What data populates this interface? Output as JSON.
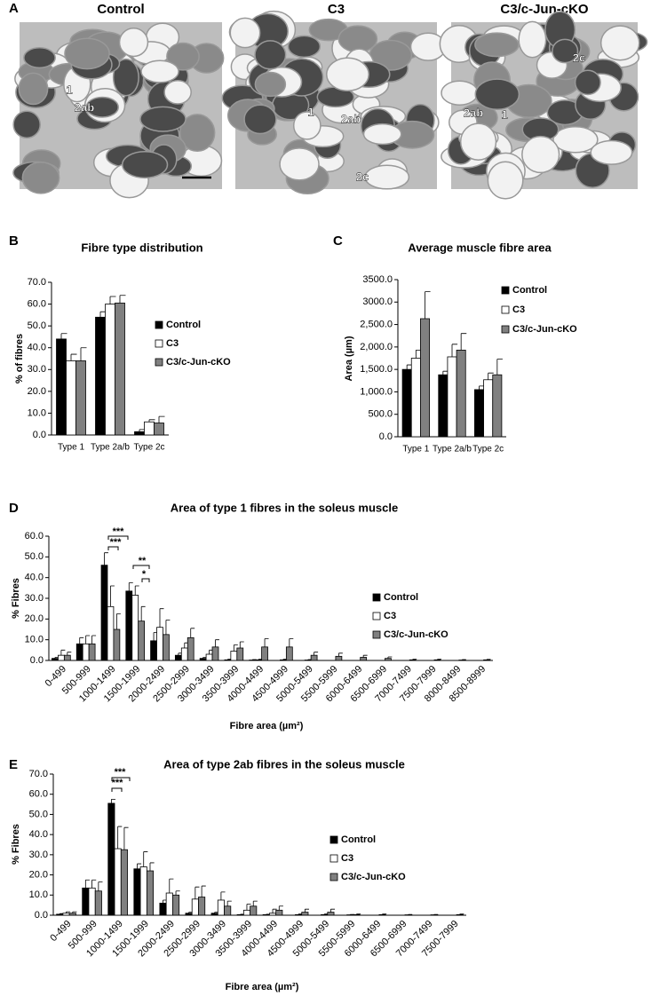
{
  "panel_a": {
    "letter": "A",
    "images": [
      {
        "title": "Control",
        "labels": [
          "1",
          "2ab"
        ]
      },
      {
        "title": "C3",
        "labels": [
          "1",
          "2ab",
          "2c"
        ]
      },
      {
        "title": "C3/c-Jun-cKO",
        "labels": [
          "2c",
          "2ab",
          "1"
        ]
      }
    ]
  },
  "chart_data": [
    {
      "type": "bar",
      "panel": "B",
      "title": "Fibre type distribution",
      "ylabel": "% of fibres",
      "categories": [
        "Type 1",
        "Type 2a/b",
        "Type 2c"
      ],
      "series": [
        {
          "name": "Control",
          "color": "#000000",
          "values": [
            44,
            54,
            1.5
          ],
          "errors": [
            2.5,
            2.5,
            1
          ]
        },
        {
          "name": "C3",
          "color": "#ffffff",
          "values": [
            34,
            60,
            6
          ],
          "errors": [
            3,
            3.5,
            1
          ]
        },
        {
          "name": "C3/c-Jun-cKO",
          "color": "#808080",
          "values": [
            34,
            60.5,
            5.5
          ],
          "errors": [
            6,
            3.5,
            3
          ]
        }
      ],
      "ylim": [
        0,
        70
      ],
      "yticks": [
        {
          "value": 0,
          "label": "0.0"
        },
        {
          "value": 10,
          "label": "10.0"
        },
        {
          "value": 20,
          "label": "20.0"
        },
        {
          "value": 30,
          "label": "30.0"
        },
        {
          "value": 40,
          "label": "40.0"
        },
        {
          "value": 50,
          "label": "50.0"
        },
        {
          "value": 60,
          "label": "60.0"
        },
        {
          "value": 70,
          "label": "70.0"
        }
      ],
      "legend": "right"
    },
    {
      "type": "bar",
      "panel": "C",
      "title": "Average muscle fibre area",
      "ylabel": "Area (µm)",
      "categories": [
        "Type 1",
        "Type 2a/b",
        "Type 2c"
      ],
      "series": [
        {
          "name": "Control",
          "color": "#000000",
          "values": [
            1500,
            1380,
            1050
          ],
          "errors": [
            100,
            80,
            80
          ]
        },
        {
          "name": "C3",
          "color": "#ffffff",
          "values": [
            1750,
            1780,
            1270
          ],
          "errors": [
            180,
            280,
            150
          ]
        },
        {
          "name": "C3/c-Jun-cKO",
          "color": "#808080",
          "values": [
            2630,
            1930,
            1380
          ],
          "errors": [
            600,
            370,
            350
          ]
        }
      ],
      "ylim": [
        0,
        3500
      ],
      "yticks": [
        {
          "value": 0,
          "label": "0.0"
        },
        {
          "value": 500,
          "label": "500.0"
        },
        {
          "value": 1000,
          "label": "1,000.0"
        },
        {
          "value": 1500,
          "label": "1,500.0"
        },
        {
          "value": 2000,
          "label": "2,000.0"
        },
        {
          "value": 2500,
          "label": "2,500.0"
        },
        {
          "value": 3000,
          "label": "3000.0"
        },
        {
          "value": 3500,
          "label": "3500.0"
        }
      ],
      "legend": "right"
    },
    {
      "type": "bar",
      "panel": "D",
      "title": "Area of type 1 fibres in the soleus muscle",
      "ylabel": "% Fibres",
      "xlabel": "Fibre area (µm²)",
      "categories": [
        "0-499",
        "500-999",
        "1000-1499",
        "1500-1999",
        "2000-2499",
        "2500-2999",
        "3000-3499",
        "3500-3999",
        "4000-4499",
        "4500-4999",
        "5000-5499",
        "5500-5999",
        "6000-6499",
        "6500-6999",
        "7000-7499",
        "7500-7999",
        "8000-8499",
        "8500-8999"
      ],
      "series": [
        {
          "name": "Control",
          "color": "#000000",
          "values": [
            1,
            8,
            46,
            33.5,
            9.5,
            2.5,
            1,
            0.3,
            0.2,
            0,
            0,
            0,
            0,
            0,
            0,
            0,
            0,
            0
          ],
          "errors": [
            0.5,
            3,
            6,
            4,
            4,
            1,
            0.5,
            0.3,
            0.2,
            0,
            0,
            0,
            0,
            0,
            0,
            0,
            0,
            0
          ]
        },
        {
          "name": "C3",
          "color": "#ffffff",
          "values": [
            2.5,
            8,
            26,
            31.5,
            16,
            6,
            3,
            4.5,
            0.3,
            0.3,
            0.2,
            0,
            0,
            0,
            0,
            0,
            0,
            0
          ],
          "errors": [
            2.5,
            4,
            10,
            4.5,
            9,
            2.5,
            2,
            3,
            0.3,
            0.3,
            0.2,
            0,
            0,
            0,
            0,
            0,
            0,
            0
          ]
        },
        {
          "name": "C3/c-Jun-cKO",
          "color": "#808080",
          "values": [
            2.5,
            8,
            15,
            19,
            12.5,
            11,
            6.5,
            6,
            6.5,
            6.5,
            2.5,
            2,
            1.5,
            1,
            0.3,
            0.3,
            0.2,
            0.3
          ],
          "errors": [
            1.5,
            4,
            7.5,
            7,
            7,
            4.5,
            3.5,
            3,
            4,
            4,
            1.5,
            1.5,
            1,
            0.7,
            0.3,
            0.3,
            0.2,
            0.2
          ]
        }
      ],
      "ylim": [
        0,
        60
      ],
      "yticks": [
        {
          "value": 0,
          "label": "0.0"
        },
        {
          "value": 10,
          "label": "10.0"
        },
        {
          "value": 20,
          "label": "20.0"
        },
        {
          "value": 30,
          "label": "30.0"
        },
        {
          "value": 40,
          "label": "40.0"
        },
        {
          "value": 50,
          "label": "50.0"
        },
        {
          "value": 60,
          "label": "60.0"
        }
      ],
      "annotations": [
        "***",
        "***",
        "**",
        "*"
      ],
      "legend": "right"
    },
    {
      "type": "bar",
      "panel": "E",
      "title": "Area of type 2ab fibres in the soleus muscle",
      "ylabel": "% Fibres",
      "xlabel": "Fibre area (µm²)",
      "categories": [
        "0-499",
        "500-999",
        "1000-1499",
        "1500-1999",
        "2000-2499",
        "2500-2999",
        "3000-3499",
        "3500-3999",
        "4000-4499",
        "4500-4999",
        "5000-5499",
        "5500-5999",
        "6000-6499",
        "6500-6999",
        "7000-7499",
        "7500-7999"
      ],
      "series": [
        {
          "name": "Control",
          "color": "#000000",
          "values": [
            0.5,
            13.5,
            55.5,
            23,
            6,
            1,
            1,
            0.3,
            0.3,
            0,
            0,
            0,
            0,
            0,
            0,
            0
          ],
          "errors": [
            0.3,
            4,
            2,
            2.5,
            1.5,
            0.5,
            0.5,
            0.2,
            0.2,
            0,
            0,
            0,
            0,
            0,
            0,
            0
          ]
        },
        {
          "name": "C3",
          "color": "#ffffff",
          "values": [
            1,
            13.5,
            33,
            24,
            11,
            8,
            7.5,
            2.5,
            1,
            0.3,
            0.3,
            0.2,
            0,
            0,
            0,
            0
          ],
          "errors": [
            0.7,
            4,
            11,
            7.5,
            7,
            6,
            4,
            3,
            2,
            0.3,
            0.3,
            0.2,
            0,
            0,
            0,
            0
          ]
        },
        {
          "name": "C3/c-Jun-cKO",
          "color": "#808080",
          "values": [
            1,
            12,
            32.5,
            22,
            10,
            9,
            4.5,
            4.5,
            2.5,
            1.5,
            1.5,
            0.3,
            0.3,
            0.2,
            0.2,
            0.3
          ],
          "errors": [
            0.7,
            4.5,
            11,
            4,
            2,
            5.5,
            2.5,
            2.5,
            2,
            1.5,
            1.5,
            0.3,
            0.3,
            0.2,
            0.2,
            0.3
          ]
        }
      ],
      "ylim": [
        0,
        70
      ],
      "yticks": [
        {
          "value": 0,
          "label": "0.0"
        },
        {
          "value": 10,
          "label": "10.0"
        },
        {
          "value": 20,
          "label": "20.0"
        },
        {
          "value": 30,
          "label": "30.0"
        },
        {
          "value": 40,
          "label": "40.0"
        },
        {
          "value": 50,
          "label": "50.0"
        },
        {
          "value": 60,
          "label": "60.0"
        },
        {
          "value": 70,
          "label": "70.0"
        }
      ],
      "annotations": [
        "***",
        "***"
      ],
      "legend": "right"
    }
  ]
}
